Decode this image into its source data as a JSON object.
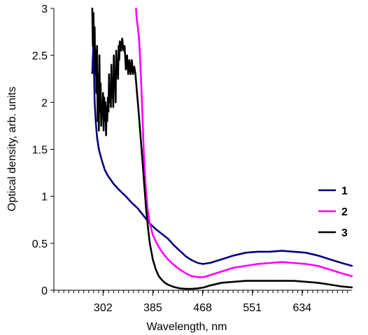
{
  "chart_data": {
    "type": "line",
    "xlabel": "Wavelength, nm",
    "ylabel": "Optical density, arb. units",
    "xlim": [
      220,
      717
    ],
    "ylim": [
      0,
      3
    ],
    "x_ticks": [
      302,
      385,
      468,
      551,
      634
    ],
    "y_ticks": [
      0,
      0.5,
      1,
      1.5,
      2,
      2.5,
      3
    ],
    "y_tick_labels": [
      "0",
      "0.5",
      "1",
      "1.5",
      "2",
      "2.5",
      "3"
    ],
    "grid": false,
    "legend_position": "right",
    "series": [
      {
        "name": "1",
        "color": "#000080",
        "x": [
          284,
          286,
          287,
          288,
          290,
          292,
          295,
          300,
          305,
          310,
          320,
          330,
          340,
          350,
          360,
          370,
          380,
          390,
          400,
          410,
          420,
          430,
          440,
          450,
          460,
          468,
          480,
          500,
          520,
          540,
          560,
          580,
          600,
          620,
          640,
          660,
          680,
          700,
          717
        ],
        "y": [
          2.31,
          2.65,
          2.35,
          2.0,
          1.78,
          1.63,
          1.5,
          1.38,
          1.28,
          1.22,
          1.13,
          1.06,
          1.0,
          0.93,
          0.87,
          0.79,
          0.71,
          0.65,
          0.6,
          0.55,
          0.48,
          0.42,
          0.36,
          0.32,
          0.29,
          0.28,
          0.29,
          0.33,
          0.37,
          0.4,
          0.41,
          0.41,
          0.42,
          0.41,
          0.4,
          0.37,
          0.33,
          0.29,
          0.26
        ]
      },
      {
        "name": "2",
        "color": "#ff00ff",
        "x": [
          357,
          358,
          359,
          360,
          362,
          364,
          366,
          368,
          370,
          373,
          376,
          380,
          385,
          390,
          395,
          400,
          405,
          410,
          420,
          430,
          440,
          450,
          460,
          470,
          480,
          500,
          520,
          540,
          560,
          580,
          600,
          620,
          640,
          660,
          680,
          700,
          717
        ],
        "y": [
          3.0,
          2.9,
          2.85,
          2.8,
          2.68,
          2.45,
          2.15,
          1.8,
          1.45,
          1.12,
          0.88,
          0.71,
          0.59,
          0.52,
          0.46,
          0.41,
          0.37,
          0.33,
          0.27,
          0.22,
          0.18,
          0.15,
          0.14,
          0.14,
          0.16,
          0.2,
          0.24,
          0.26,
          0.28,
          0.29,
          0.3,
          0.29,
          0.28,
          0.26,
          0.22,
          0.18,
          0.15
        ]
      },
      {
        "name": "3",
        "color": "#000000",
        "x": [
          284,
          285,
          286,
          287,
          288,
          289,
          290,
          291,
          292,
          293,
          294,
          295,
          296,
          297,
          298,
          299,
          300,
          301,
          302,
          303,
          304,
          305,
          306,
          307,
          308,
          309,
          310,
          311,
          312,
          313,
          314,
          315,
          316,
          317,
          318,
          319,
          320,
          321,
          322,
          323,
          324,
          325,
          326,
          327,
          328,
          329,
          330,
          332,
          334,
          336,
          338,
          340,
          342,
          344,
          346,
          348,
          350,
          352,
          354,
          356,
          358,
          360,
          362,
          365,
          368,
          371,
          374,
          377,
          380,
          385,
          390,
          395,
          400,
          405,
          410,
          420,
          430,
          440,
          450,
          460,
          470,
          480,
          500,
          520,
          540,
          560,
          580,
          600,
          620,
          640,
          660,
          680,
          700,
          717
        ],
        "y": [
          3.0,
          2.6,
          2.95,
          2.5,
          2.8,
          2.3,
          2.55,
          2.1,
          2.6,
          1.8,
          2.3,
          1.7,
          2.5,
          1.9,
          2.2,
          1.75,
          2.0,
          1.85,
          2.1,
          1.7,
          2.05,
          1.8,
          2.0,
          1.65,
          1.95,
          1.8,
          2.05,
          1.9,
          2.3,
          2.0,
          2.15,
          1.95,
          2.4,
          2.05,
          2.2,
          1.95,
          2.5,
          2.15,
          2.3,
          2.0,
          2.55,
          2.3,
          2.45,
          2.25,
          2.6,
          2.45,
          2.65,
          2.55,
          2.68,
          2.55,
          2.6,
          2.35,
          2.5,
          2.3,
          2.45,
          2.3,
          2.45,
          2.3,
          2.38,
          2.3,
          2.15,
          2.0,
          1.85,
          1.6,
          1.35,
          1.1,
          0.85,
          0.66,
          0.5,
          0.33,
          0.22,
          0.15,
          0.11,
          0.08,
          0.06,
          0.035,
          0.02,
          0.015,
          0.015,
          0.02,
          0.03,
          0.05,
          0.08,
          0.09,
          0.1,
          0.1,
          0.1,
          0.1,
          0.1,
          0.09,
          0.08,
          0.06,
          0.04,
          0.03
        ]
      }
    ]
  }
}
